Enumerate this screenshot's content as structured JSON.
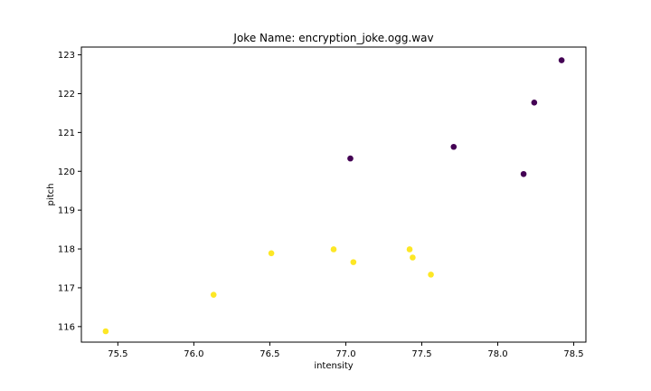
{
  "chart_data": {
    "type": "scatter",
    "title": "Joke Name: encryption_joke.ogg.wav",
    "xlabel": "intensity",
    "ylabel": "pitch",
    "xlim": [
      75.26,
      78.58
    ],
    "ylim": [
      115.6,
      123.2
    ],
    "xticks": [
      75.5,
      76.0,
      76.5,
      77.0,
      77.5,
      78.0,
      78.5
    ],
    "xtick_labels": [
      "75.5",
      "76.0",
      "76.5",
      "77.0",
      "77.5",
      "78.0",
      "78.5"
    ],
    "yticks": [
      116,
      117,
      118,
      119,
      120,
      121,
      122,
      123
    ],
    "ytick_labels": [
      "116",
      "117",
      "118",
      "119",
      "120",
      "121",
      "122",
      "123"
    ],
    "grid": false,
    "legend": "none",
    "series": [
      {
        "color": "#440154",
        "points": [
          {
            "x": 77.03,
            "y": 120.33
          },
          {
            "x": 77.71,
            "y": 120.63
          },
          {
            "x": 78.17,
            "y": 119.93
          },
          {
            "x": 78.24,
            "y": 121.77
          },
          {
            "x": 78.42,
            "y": 122.86
          }
        ]
      },
      {
        "color": "#fde725",
        "points": [
          {
            "x": 75.42,
            "y": 115.88
          },
          {
            "x": 76.13,
            "y": 116.82
          },
          {
            "x": 76.51,
            "y": 117.89
          },
          {
            "x": 76.92,
            "y": 117.99
          },
          {
            "x": 77.05,
            "y": 117.66
          },
          {
            "x": 77.42,
            "y": 117.99
          },
          {
            "x": 77.44,
            "y": 117.78
          },
          {
            "x": 77.56,
            "y": 117.34
          }
        ]
      }
    ]
  }
}
